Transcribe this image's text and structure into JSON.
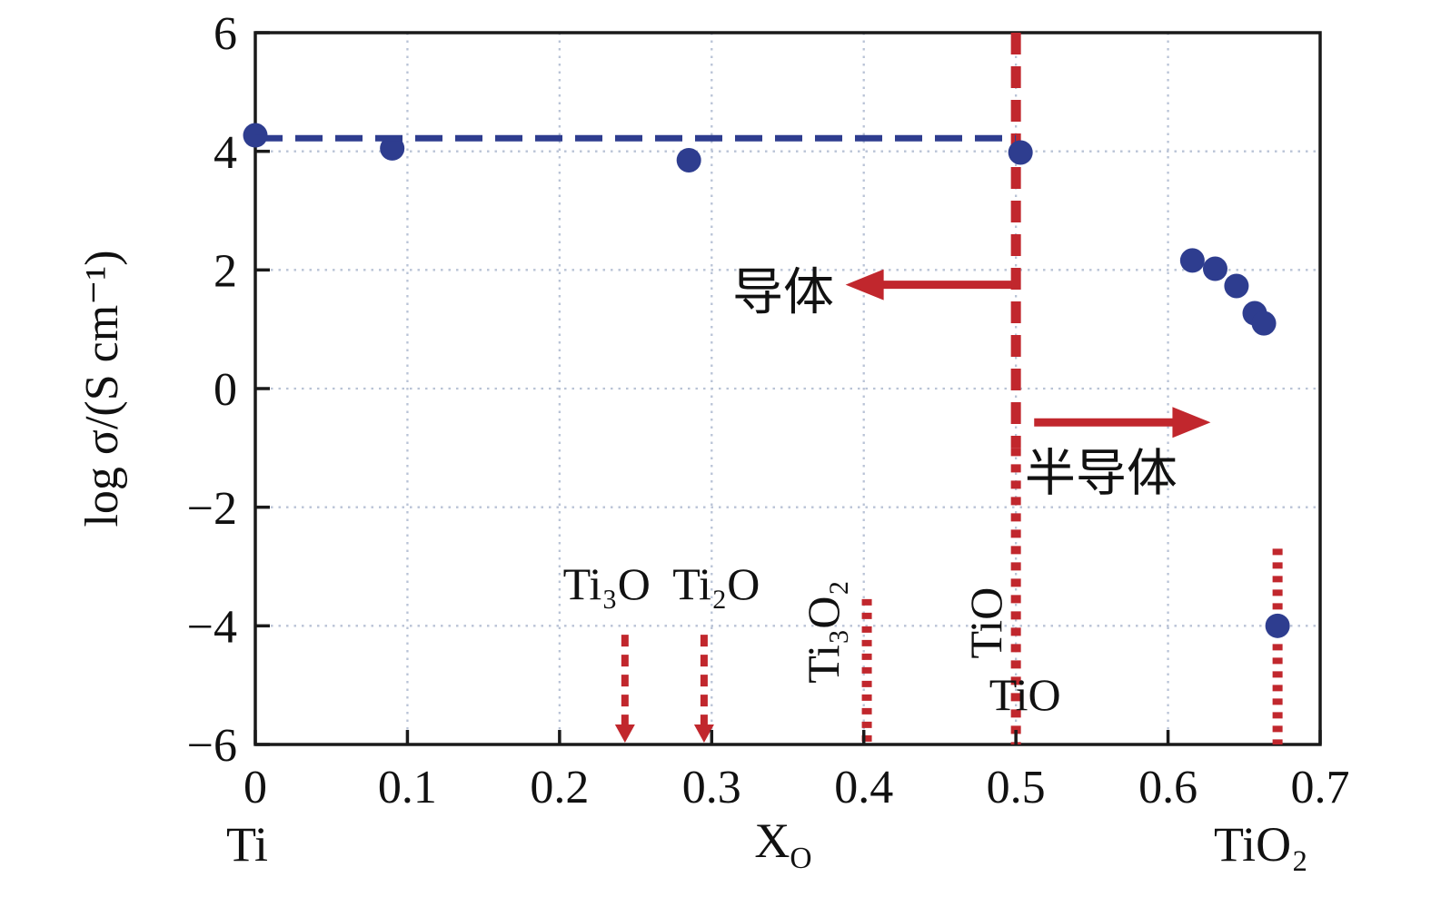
{
  "chart_data": {
    "type": "scatter",
    "title": "",
    "xlabel_main": "X",
    "xlabel_sub": "O",
    "ylabel": "log σ/(S cm⁻¹)",
    "x_end_labels": {
      "left": "Ti",
      "right": "TiO₂"
    },
    "xlim": [
      0,
      0.7
    ],
    "ylim": [
      -6,
      6
    ],
    "x_tick_values": [
      0,
      0.1,
      0.2,
      0.3,
      0.4,
      0.5,
      0.6,
      0.7
    ],
    "x_tick_labels": [
      "0",
      "0.1",
      "0.2",
      "0.3",
      "0.4",
      "0.5",
      "0.6",
      "0.7"
    ],
    "y_tick_values": [
      -6,
      -4,
      -2,
      0,
      2,
      4,
      6
    ],
    "y_tick_labels": [
      "−6",
      "−4",
      "−2",
      "0",
      "2",
      "4",
      "6"
    ],
    "grid": true,
    "legend": "none",
    "series": [
      {
        "name": "log-conductivity-points",
        "type": "scatter",
        "color": "#2e3d8f",
        "points": [
          [
            0,
            4.27
          ],
          [
            0.09,
            4.05
          ],
          [
            0.285,
            3.85
          ],
          [
            0.503,
            3.98
          ],
          [
            0.616,
            2.16
          ],
          [
            0.631,
            2.02
          ],
          [
            0.645,
            1.73
          ],
          [
            0.657,
            1.27
          ],
          [
            0.663,
            1.1
          ],
          [
            0.672,
            -4.0
          ]
        ]
      },
      {
        "name": "metallic-conductivity-trend",
        "type": "dashed-line",
        "color": "#2e3d8f",
        "points": [
          [
            0,
            4.22
          ],
          [
            0.5,
            4.22
          ]
        ]
      }
    ],
    "phase_boundaries": [
      {
        "name": "Ti3O",
        "x": 0.243,
        "y_from": -4.15,
        "y_to": -6,
        "style": "dashed-arrow-down"
      },
      {
        "name": "Ti2O",
        "x": 0.295,
        "y_from": -4.15,
        "y_to": -6,
        "style": "dashed-arrow-down"
      },
      {
        "name": "Ti3O2",
        "x": 0.402,
        "y_from": -3.55,
        "y_to": -6,
        "style": "dotted"
      },
      {
        "name": "TiO",
        "x": 0.5,
        "y_from": 6,
        "y_to": -6,
        "style": "dashed-thick"
      },
      {
        "name": "TiO2",
        "x": 0.672,
        "y_from": -2.7,
        "y_to": -6,
        "style": "dotted"
      }
    ],
    "region_arrows": [
      {
        "name": "conductor-arrow",
        "direction": "left",
        "x_tail": 0.497,
        "x_head": 0.388,
        "y": 1.75
      },
      {
        "name": "semiconductor-arrow",
        "direction": "right",
        "x_tail": 0.512,
        "x_head": 0.628,
        "y": -0.57
      }
    ],
    "annotations": [
      {
        "name": "conductor-label",
        "text": "导体",
        "x": 0.347,
        "y": 1.63,
        "rotate": 0,
        "size": 56,
        "font": "sans"
      },
      {
        "name": "semiconductor-label",
        "text": "半导体",
        "x": 0.556,
        "y": -1.42,
        "rotate": 0,
        "size": 56,
        "font": "sans"
      },
      {
        "name": "ti3o-label",
        "text": "Ti₃O",
        "x": 0.231,
        "y": -3.28,
        "rotate": 0,
        "size": 50,
        "font": "serif"
      },
      {
        "name": "ti2o-label",
        "text": "Ti₂O",
        "x": 0.303,
        "y": -3.28,
        "rotate": 0,
        "size": 50,
        "font": "serif"
      },
      {
        "name": "ti3o2-label",
        "text": "Ti₃O₂",
        "x": 0.373,
        "y": -4.1,
        "rotate": -90,
        "size": 50,
        "font": "serif"
      },
      {
        "name": "tio-vertical-label",
        "text": "TiO",
        "x": 0.48,
        "y": -3.95,
        "rotate": -90,
        "size": 50,
        "font": "serif"
      },
      {
        "name": "tio-horizontal-label",
        "text": "TiO",
        "x": 0.506,
        "y": -5.15,
        "rotate": 0,
        "size": 50,
        "font": "serif"
      }
    ],
    "colors": {
      "points": "#2e3d8f",
      "trend": "#2e3d8f",
      "phase": "#c1272d",
      "arrows": "#c1272d",
      "grid": "#b9c3d6",
      "axis": "#1a1a1a",
      "background": "#ffffff"
    }
  }
}
